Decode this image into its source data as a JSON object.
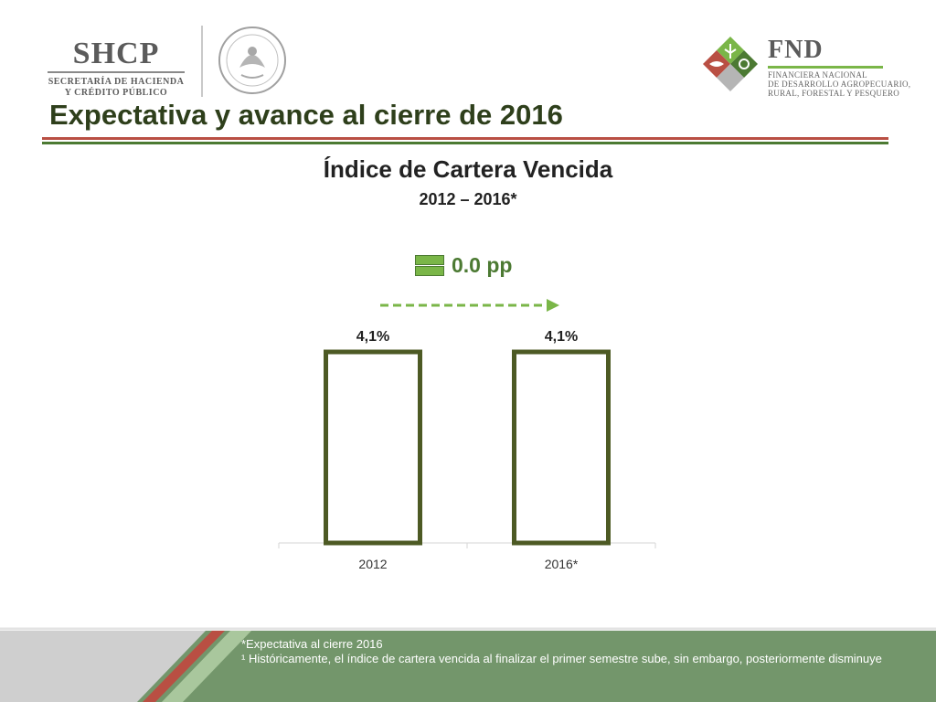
{
  "header": {
    "shcp": {
      "word": "SHCP",
      "line1": "SECRETARÍA DE HACIENDA",
      "line2": "Y CRÉDITO PÚBLICO"
    },
    "fnd": {
      "word": "FND",
      "line1": "FINANCIERA NACIONAL",
      "line2": "DE DESARROLLO AGROPECUARIO,",
      "line3": "RURAL, FORESTAL Y PESQUERO"
    }
  },
  "title": "Expectativa y avance al cierre de 2016",
  "colors": {
    "title": "#2e3f1b",
    "accent_red": "#b94f43",
    "accent_green": "#4c7a33",
    "light_green": "#7ab648",
    "bar_border": "#4d5a24"
  },
  "change": {
    "value": "0.0 pp",
    "icon": "equal-sign-icon"
  },
  "chart_data": {
    "type": "bar",
    "title": "Índice de Cartera Vencida",
    "subtitle": "2012 – 2016*",
    "categories": [
      "2012",
      "2016*"
    ],
    "values": [
      4.1,
      4.1
    ],
    "data_labels": [
      "4,1%",
      "4,1%"
    ],
    "ylim": [
      0,
      4.1
    ],
    "grid": false,
    "legend": "none",
    "bar_fill": "#ffffff",
    "bar_border": "#4d5a24",
    "trend_arrow": {
      "style": "dashed",
      "color": "#7ab648",
      "direction": "right"
    }
  },
  "footer": {
    "note1": "*Expectativa al cierre 2016",
    "note2": "¹ Históricamente, el índice de cartera vencida al finalizar el primer semestre sube, sin embargo, posteriormente disminuye"
  }
}
